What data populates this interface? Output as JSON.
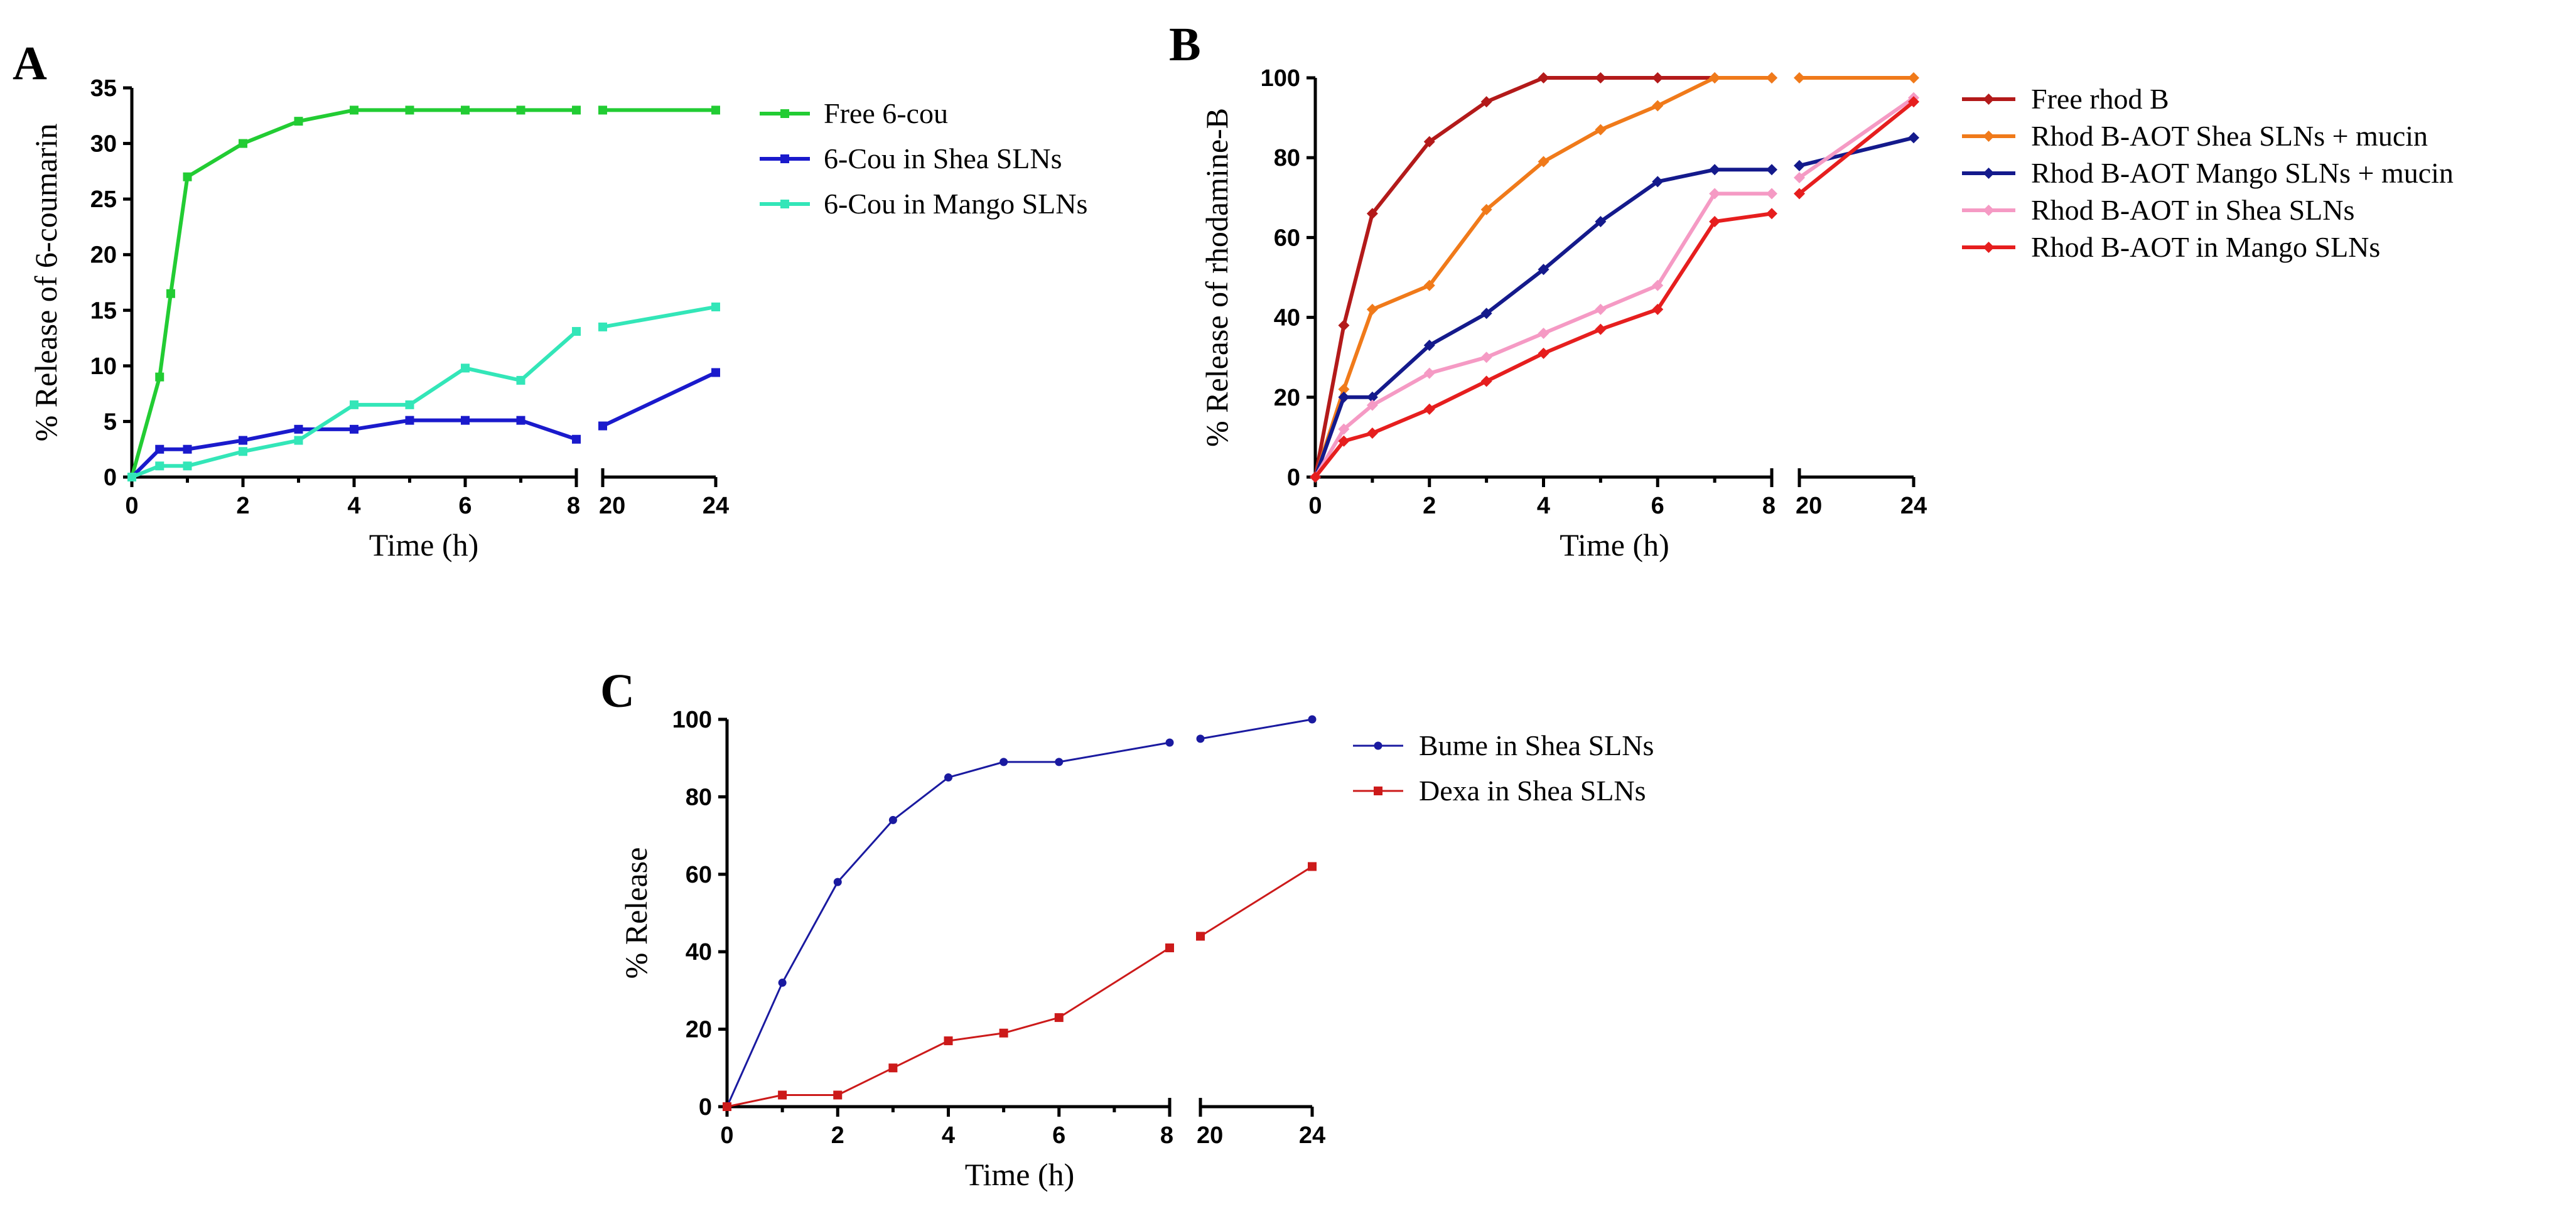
{
  "chart_data": [
    {
      "panel": "A",
      "type": "line",
      "xlabel": "Time (h)",
      "ylabel": "% Release of 6-coumarin",
      "ylim": [
        0,
        35
      ],
      "yticks": [
        0,
        5,
        10,
        15,
        20,
        25,
        30,
        35
      ],
      "xticks": [
        0,
        2,
        4,
        6,
        8,
        20,
        24
      ],
      "x_break": [
        8,
        20
      ],
      "legend_position": "right",
      "series": [
        {
          "name": "Free 6-cou",
          "color": "#22cc33",
          "marker": "square",
          "x": [
            0,
            0.5,
            0.7,
            1,
            2,
            3,
            4,
            5,
            6,
            7,
            8,
            20,
            24
          ],
          "y": [
            0,
            9,
            16.5,
            27,
            30,
            32,
            33,
            33,
            33,
            33,
            33,
            33,
            33
          ]
        },
        {
          "name": "6-Cou in Shea SLNs",
          "color": "#1a1acc",
          "marker": "square",
          "x": [
            0,
            0.5,
            1,
            2,
            3,
            4,
            5,
            6,
            7,
            8,
            20,
            24
          ],
          "y": [
            0,
            2.5,
            2.5,
            3.3,
            4.3,
            4.3,
            5.1,
            5.1,
            5.1,
            3.4,
            4.6,
            9.4
          ]
        },
        {
          "name": "6-Cou in Mango SLNs",
          "color": "#33e6b8",
          "marker": "square",
          "x": [
            0,
            0.5,
            1,
            2,
            3,
            4,
            5,
            6,
            7,
            8,
            20,
            24
          ],
          "y": [
            0,
            1,
            1,
            2.3,
            3.3,
            6.5,
            6.5,
            9.8,
            8.7,
            13.1,
            13.5,
            15.3
          ]
        }
      ]
    },
    {
      "panel": "B",
      "type": "line",
      "xlabel": "Time (h)",
      "ylabel": "% Release of rhodamine-B",
      "ylim": [
        0,
        100
      ],
      "yticks": [
        0,
        20,
        40,
        60,
        80,
        100
      ],
      "xticks": [
        0,
        2,
        4,
        6,
        8,
        20,
        24
      ],
      "x_break": [
        8,
        20
      ],
      "legend_position": "right",
      "series": [
        {
          "name": "Free rhod B",
          "color": "#b31a1a",
          "marker": "diamond",
          "x": [
            0,
            0.5,
            1,
            2,
            3,
            4,
            5,
            6,
            7,
            8
          ],
          "y": [
            0,
            38,
            66,
            84,
            94,
            100,
            100,
            100,
            100,
            100
          ]
        },
        {
          "name": "Rhod B-AOT Shea SLNs + mucin",
          "color": "#f07a1a",
          "marker": "diamond",
          "x": [
            0,
            0.5,
            1,
            2,
            3,
            4,
            5,
            6,
            7,
            8,
            20,
            24
          ],
          "y": [
            0,
            22,
            42,
            48,
            67,
            79,
            87,
            93,
            100,
            100,
            100,
            100
          ]
        },
        {
          "name": "Rhod B-AOT Mango SLNs + mucin",
          "color": "#141a8c",
          "marker": "diamond",
          "x": [
            0,
            0.5,
            1,
            2,
            3,
            4,
            5,
            6,
            7,
            8,
            20,
            24
          ],
          "y": [
            0,
            20,
            20,
            33,
            41,
            52,
            64,
            74,
            77,
            77,
            78,
            85
          ]
        },
        {
          "name": "Rhod B-AOT in Shea SLNs",
          "color": "#f59ac4",
          "marker": "diamond",
          "x": [
            0,
            0.5,
            1,
            2,
            3,
            4,
            5,
            6,
            7,
            8,
            20,
            24
          ],
          "y": [
            0,
            12,
            18,
            26,
            30,
            36,
            42,
            48,
            71,
            71,
            75,
            95
          ]
        },
        {
          "name": "Rhod B-AOT in Mango SLNs",
          "color": "#e61e1e",
          "marker": "diamond",
          "x": [
            0,
            0.5,
            1,
            2,
            3,
            4,
            5,
            6,
            7,
            8,
            20,
            24
          ],
          "y": [
            0,
            9,
            11,
            17,
            24,
            31,
            37,
            42,
            64,
            66,
            71,
            94
          ]
        }
      ]
    },
    {
      "panel": "C",
      "type": "line",
      "xlabel": "Time (h)",
      "ylabel": "% Release",
      "ylim": [
        0,
        100
      ],
      "yticks": [
        0,
        20,
        40,
        60,
        80,
        100
      ],
      "xticks": [
        0,
        2,
        4,
        6,
        8,
        20,
        24
      ],
      "x_break": [
        8,
        20
      ],
      "legend_position": "right",
      "series": [
        {
          "name": "Bume in Shea SLNs",
          "color": "#1a1aa0",
          "marker": "circle",
          "x": [
            0,
            1,
            2,
            3,
            4,
            5,
            6,
            8,
            20,
            24
          ],
          "y": [
            0,
            32,
            58,
            74,
            85,
            89,
            89,
            94,
            95,
            100
          ]
        },
        {
          "name": "Dexa in Shea SLNs",
          "color": "#cc1a1a",
          "marker": "square",
          "x": [
            0,
            1,
            2,
            3,
            4,
            5,
            6,
            8,
            20,
            24
          ],
          "y": [
            0,
            3,
            3,
            10,
            17,
            19,
            23,
            41,
            44,
            62
          ]
        }
      ]
    }
  ]
}
